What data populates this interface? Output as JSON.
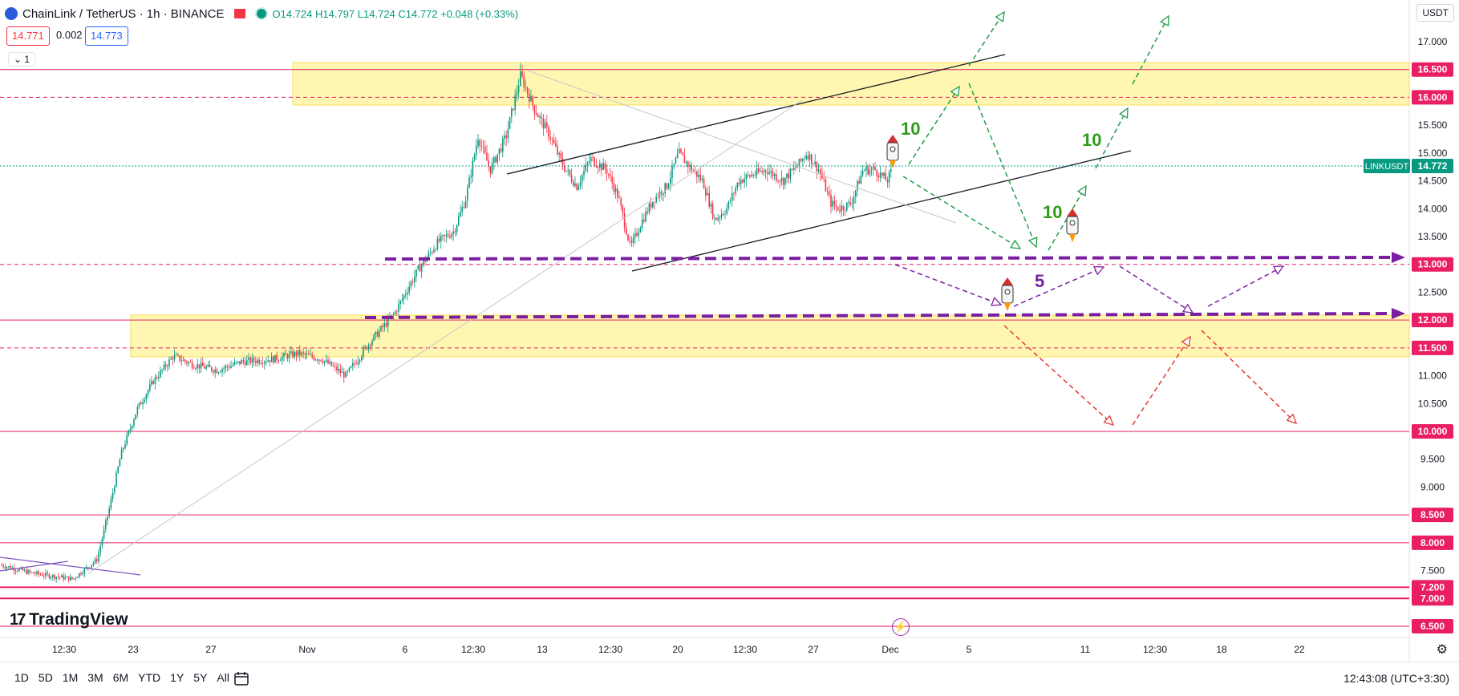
{
  "header": {
    "symbol": "ChainLink / TetherUS · 1h · BINANCE",
    "open": "O14.724",
    "high": "H14.797",
    "low": "L14.724",
    "close": "C14.772",
    "change": "+0.048 (+0.33%)"
  },
  "sell_price": "14.771",
  "spread": "0.002",
  "buy_price": "14.773",
  "indicator_toggle": "1",
  "currency": "USDT",
  "price_axis_labels": [
    "17.000",
    "16.500",
    "16.000",
    "15.500",
    "15.000",
    "14.500",
    "14.000",
    "13.500",
    "13.000",
    "12.500",
    "12.000",
    "11.500",
    "11.000",
    "10.500",
    "10.000",
    "9.500",
    "9.000",
    "8.500",
    "8.000",
    "7.500",
    "7.200",
    "7.000",
    "6.500"
  ],
  "highlighted_levels": [
    "16.500",
    "16.000",
    "13.000",
    "12.000",
    "11.500",
    "10.000",
    "8.500",
    "8.000",
    "7.200",
    "7.000",
    "6.500"
  ],
  "symbol_label": "LINKUSDT",
  "last_price": "14.772",
  "time_axis_labels": [
    "12:30",
    "23",
    "27",
    "Nov",
    "6",
    "12:30",
    "13",
    "12:30",
    "20",
    "12:30",
    "27",
    "Dec",
    "5",
    "11",
    "12:30",
    "18",
    "22"
  ],
  "annotations": {
    "label_10_a": "10",
    "label_10_b": "10",
    "label_10_c": "10",
    "label_5": "5"
  },
  "brand": "TradingView",
  "ranges": [
    "1D",
    "5D",
    "1M",
    "3M",
    "6M",
    "YTD",
    "1Y",
    "5Y",
    "All"
  ],
  "clock": "12:43:08 (UTC+3:30)",
  "colors": {
    "up": "#089981",
    "down": "#f23645",
    "zone": "#fff176",
    "level": "#e91e63",
    "purple": "#7b1fa2",
    "green_arrow": "#1e9e4a",
    "red_arrow": "#e53935"
  }
}
